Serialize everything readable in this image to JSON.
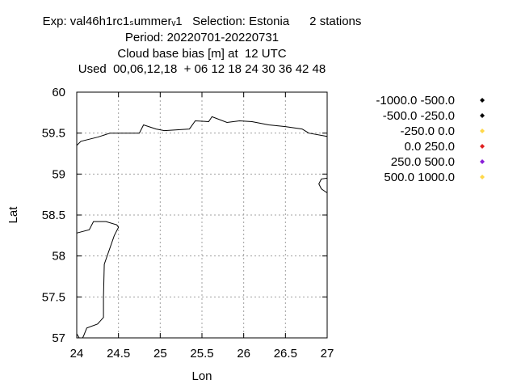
{
  "header": {
    "line1": "Exp: val46h1rc1ₛummerᵥ1   Selection: Estonia      2 stations",
    "line2": "Period: 20220701-20220731",
    "line3": "Cloud base bias [m] at  12 UTC",
    "line4": "Used  00,06,12,18  + 06 12 18 24 30 36 42 48"
  },
  "chart_data": {
    "type": "scatter",
    "title": "Cloud base bias [m] at  12 UTC",
    "xlabel": "Lon",
    "ylabel": "Lat",
    "xlim": [
      24,
      27
    ],
    "ylim": [
      57,
      60
    ],
    "grid": true,
    "x_ticks": [
      "24",
      "24.5",
      "25",
      "25.5",
      "26",
      "26.5",
      "27"
    ],
    "y_ticks": [
      "57",
      "57.5",
      "58",
      "58.5",
      "59",
      "59.5",
      "60"
    ],
    "legend_position": "right",
    "legend": [
      {
        "label": "-1000.0 -500.0",
        "color": "#000000"
      },
      {
        "label": "-500.0 -250.0",
        "color": "#000000"
      },
      {
        "label": "-250.0 0.0",
        "color": "#ffd84a"
      },
      {
        "label": "0.0 250.0",
        "color": "#e02020"
      },
      {
        "label": "250.0 500.0",
        "color": "#8a1fd8"
      },
      {
        "label": "500.0 1000.0",
        "color": "#ffd84a"
      }
    ],
    "points": [],
    "coastlines": [
      [
        [
          24.0,
          59.35
        ],
        [
          24.05,
          59.4
        ],
        [
          24.25,
          59.45
        ],
        [
          24.4,
          59.5
        ],
        [
          24.75,
          59.5
        ],
        [
          24.8,
          59.6
        ],
        [
          24.95,
          59.55
        ],
        [
          25.05,
          59.53
        ],
        [
          25.35,
          59.55
        ],
        [
          25.42,
          59.65
        ],
        [
          25.58,
          59.64
        ],
        [
          25.62,
          59.7
        ],
        [
          25.8,
          59.63
        ],
        [
          25.95,
          59.65
        ],
        [
          26.1,
          59.64
        ],
        [
          26.3,
          59.6
        ],
        [
          26.5,
          59.58
        ],
        [
          26.7,
          59.55
        ],
        [
          26.78,
          59.5
        ],
        [
          27.0,
          59.46
        ]
      ],
      [
        [
          27.0,
          58.95
        ],
        [
          26.93,
          58.94
        ],
        [
          26.9,
          58.88
        ],
        [
          26.93,
          58.82
        ],
        [
          27.0,
          58.77
        ]
      ],
      [
        [
          24.0,
          58.28
        ],
        [
          24.15,
          58.32
        ],
        [
          24.2,
          58.42
        ],
        [
          24.35,
          58.42
        ],
        [
          24.48,
          58.38
        ],
        [
          24.5,
          58.35
        ],
        [
          24.45,
          58.25
        ],
        [
          24.33,
          57.9
        ],
        [
          24.32,
          57.5
        ],
        [
          24.32,
          57.25
        ],
        [
          24.25,
          57.17
        ],
        [
          24.12,
          57.12
        ],
        [
          24.08,
          57.02
        ],
        [
          24.07,
          57.0
        ]
      ],
      [
        [
          24.0,
          57.05
        ],
        [
          24.03,
          57.0
        ]
      ]
    ]
  }
}
